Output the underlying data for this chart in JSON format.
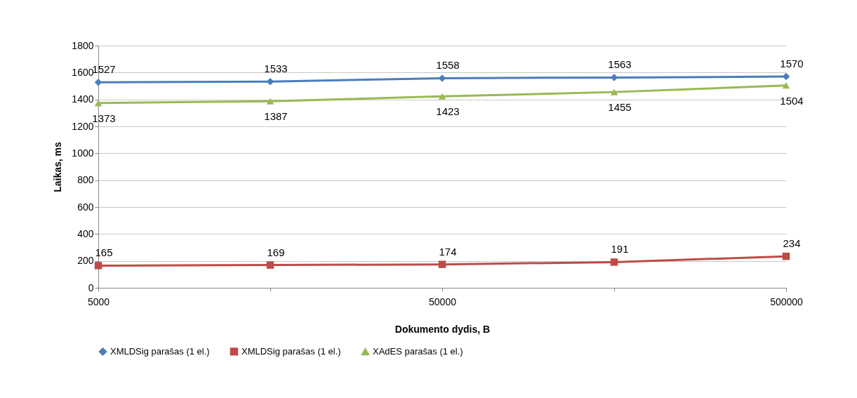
{
  "chart_data": {
    "type": "line",
    "xlabel": "Dokumento dydis, B",
    "ylabel": "Laikas, ms",
    "categories": [
      "5000",
      null,
      "50000",
      null,
      "500000"
    ],
    "ylim": [
      0,
      1800
    ],
    "yticks": [
      0,
      200,
      400,
      600,
      800,
      1000,
      1200,
      1400,
      1600,
      1800
    ],
    "grid": "y",
    "legend": "bottom",
    "data_labels": true,
    "line_style": "solid",
    "series": [
      {
        "name": "XMLDSig parašas (1 el.)",
        "color": "#4a7ebb",
        "marker": "diamond",
        "values": [
          1527,
          1533,
          1558,
          1563,
          1570
        ]
      },
      {
        "name": "XMLDSig parašas (1 el.)",
        "color": "#be4b48",
        "marker": "square",
        "values": [
          165,
          169,
          174,
          191,
          234
        ]
      },
      {
        "name": "XAdES parašas (1 el.)",
        "color": "#98b954",
        "marker": "triangle",
        "values": [
          1373,
          1387,
          1423,
          1455,
          1504
        ]
      }
    ]
  }
}
